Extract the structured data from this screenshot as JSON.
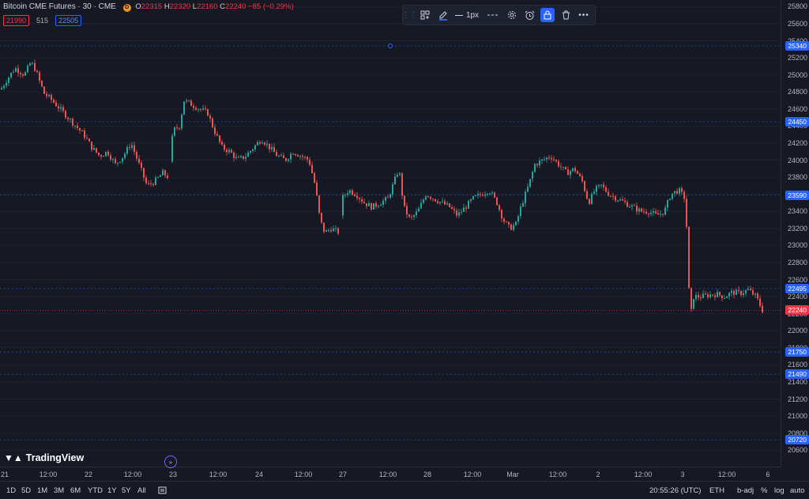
{
  "legend": {
    "symbol": "Bitcoin CME Futures · 30 · CME",
    "badge": "D",
    "o_label": "O",
    "o": "22315",
    "h_label": "H",
    "h": "22320",
    "l_label": "L",
    "l": "22160",
    "c_label": "C",
    "c": "22240",
    "change": "−85 (−0.29%)",
    "bid": "21990",
    "spread": "515",
    "ask": "22505"
  },
  "toolbar": {
    "width_label": "1px",
    "icons": [
      "drag-handle-icon",
      "template-icon",
      "pencil-icon",
      "line-style-icon",
      "dash-style-icon",
      "gear-icon",
      "alarm-icon",
      "lock-icon",
      "trash-icon",
      "more-icon"
    ]
  },
  "price_axis": {
    "ticks": [
      "25800",
      "25600",
      "25400",
      "25200",
      "25000",
      "24800",
      "24600",
      "24400",
      "24200",
      "24000",
      "23800",
      "23600",
      "23400",
      "23200",
      "23000",
      "22800",
      "22600",
      "22400",
      "22200",
      "22000",
      "21800",
      "21600",
      "21400",
      "21200",
      "21000",
      "20800",
      "20600"
    ],
    "tags": [
      {
        "label": "25340",
        "color": "#2962ff"
      },
      {
        "label": "24450",
        "color": "#2962ff"
      },
      {
        "label": "23590",
        "color": "#2962ff"
      },
      {
        "label": "22495",
        "color": "#2962ff"
      },
      {
        "label": "22240",
        "color": "#f23645"
      },
      {
        "label": "21750",
        "color": "#2962ff"
      },
      {
        "label": "21490",
        "color": "#2962ff"
      },
      {
        "label": "20720",
        "color": "#2962ff"
      }
    ]
  },
  "time_axis": [
    "21",
    "12:00",
    "22",
    "12:00",
    "23",
    "12:00",
    "24",
    "12:00",
    "27",
    "12:00",
    "28",
    "12:00",
    "Mar",
    "12:00",
    "2",
    "12:00",
    "3",
    "12:00",
    "6"
  ],
  "bottom_bar": {
    "ranges": [
      "1D",
      "5D",
      "1M",
      "3M",
      "6M",
      "YTD",
      "1Y",
      "5Y",
      "All"
    ],
    "clock": "20:55:26 (UTC)",
    "session": "ETH",
    "adj": "b-adj",
    "pct": "%",
    "log": "log",
    "auto": "auto"
  },
  "logo": "TradingView",
  "chart_data": {
    "type": "candlestick",
    "title": "Bitcoin CME Futures · 30 · CME",
    "ylim": [
      20500,
      25850
    ],
    "x_labels": [
      "21",
      "12:00",
      "22",
      "12:00",
      "23",
      "12:00",
      "24",
      "12:00",
      "27",
      "12:00",
      "28",
      "12:00",
      "Mar",
      "12:00",
      "2",
      "12:00",
      "3",
      "12:00",
      "6"
    ],
    "horizontal_lines": [
      25340,
      24450,
      23590,
      22495,
      22240,
      21750,
      21490,
      20720
    ],
    "last_price": 22240,
    "close_path": [
      [
        0,
        24830
      ],
      [
        8,
        24950
      ],
      [
        18,
        25080
      ],
      [
        30,
        25000
      ],
      [
        38,
        25150
      ],
      [
        44,
        25060
      ],
      [
        48,
        24950
      ],
      [
        55,
        24780
      ],
      [
        65,
        24700
      ],
      [
        75,
        24600
      ],
      [
        85,
        24500
      ],
      [
        95,
        24400
      ],
      [
        105,
        24300
      ],
      [
        115,
        24150
      ],
      [
        125,
        24050
      ],
      [
        135,
        24100
      ],
      [
        145,
        23950
      ],
      [
        155,
        24050
      ],
      [
        165,
        24200
      ],
      [
        175,
        23950
      ],
      [
        185,
        23700
      ],
      [
        195,
        23750
      ],
      [
        205,
        23850
      ],
      [
        212,
        23800
      ],
      [
        218,
        24350
      ],
      [
        226,
        24400
      ],
      [
        232,
        24700
      ],
      [
        242,
        24650
      ],
      [
        252,
        24600
      ],
      [
        262,
        24550
      ],
      [
        270,
        24350
      ],
      [
        280,
        24150
      ],
      [
        290,
        24100
      ],
      [
        300,
        24000
      ],
      [
        310,
        24050
      ],
      [
        320,
        24150
      ],
      [
        330,
        24250
      ],
      [
        340,
        24150
      ],
      [
        350,
        24050
      ],
      [
        360,
        24000
      ],
      [
        370,
        24100
      ],
      [
        380,
        24050
      ],
      [
        390,
        24000
      ],
      [
        398,
        23700
      ],
      [
        404,
        23300
      ],
      [
        410,
        23150
      ],
      [
        418,
        23200
      ],
      [
        428,
        23150
      ],
      [
        432,
        23550
      ],
      [
        440,
        23650
      ],
      [
        450,
        23600
      ],
      [
        460,
        23500
      ],
      [
        470,
        23450
      ],
      [
        480,
        23500
      ],
      [
        490,
        23550
      ],
      [
        498,
        23750
      ],
      [
        504,
        23900
      ],
      [
        510,
        23450
      ],
      [
        518,
        23300
      ],
      [
        528,
        23400
      ],
      [
        538,
        23600
      ],
      [
        548,
        23550
      ],
      [
        558,
        23500
      ],
      [
        568,
        23450
      ],
      [
        578,
        23350
      ],
      [
        588,
        23450
      ],
      [
        598,
        23550
      ],
      [
        608,
        23600
      ],
      [
        618,
        23650
      ],
      [
        628,
        23500
      ],
      [
        636,
        23300
      ],
      [
        644,
        23200
      ],
      [
        652,
        23250
      ],
      [
        660,
        23500
      ],
      [
        668,
        23700
      ],
      [
        676,
        23950
      ],
      [
        686,
        24000
      ],
      [
        696,
        24050
      ],
      [
        706,
        23950
      ],
      [
        716,
        23850
      ],
      [
        726,
        23900
      ],
      [
        736,
        23750
      ],
      [
        744,
        23500
      ],
      [
        752,
        23650
      ],
      [
        760,
        23700
      ],
      [
        770,
        23600
      ],
      [
        780,
        23550
      ],
      [
        790,
        23500
      ],
      [
        800,
        23450
      ],
      [
        810,
        23400
      ],
      [
        820,
        23400
      ],
      [
        830,
        23350
      ],
      [
        840,
        23400
      ],
      [
        848,
        23600
      ],
      [
        858,
        23650
      ],
      [
        866,
        23550
      ],
      [
        870,
        22900
      ],
      [
        872,
        22050
      ],
      [
        876,
        22400
      ],
      [
        886,
        22400
      ],
      [
        896,
        22420
      ],
      [
        906,
        22430
      ],
      [
        916,
        22400
      ],
      [
        926,
        22450
      ],
      [
        936,
        22440
      ],
      [
        946,
        22480
      ],
      [
        956,
        22400
      ],
      [
        964,
        22240
      ]
    ]
  }
}
